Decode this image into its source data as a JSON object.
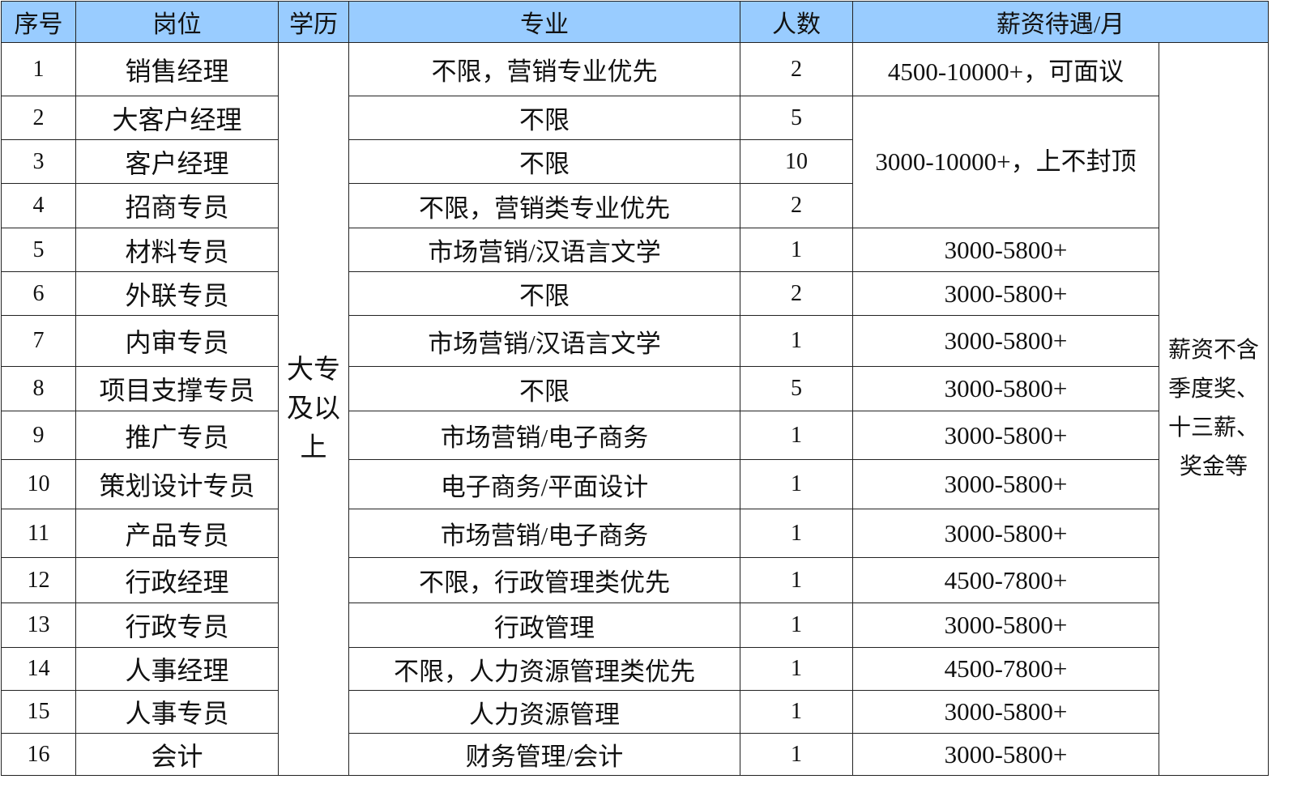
{
  "headers": {
    "index": "序号",
    "position": "岗位",
    "education": "学历",
    "major": "专业",
    "count": "人数",
    "salary": "薪资待遇/月"
  },
  "education_all": "大专及以上",
  "salary_note": "薪资不含季度奖、十三薪、奖金等",
  "merged_salary_2_4": "3000-10000+，上不封顶",
  "rows": [
    {
      "no": "1",
      "position": "销售经理",
      "major": "不限，营销专业优先",
      "count": "2",
      "salary": "4500-10000+，可面议"
    },
    {
      "no": "2",
      "position": "大客户经理",
      "major": "不限",
      "count": "5",
      "salary": ""
    },
    {
      "no": "3",
      "position": "客户经理",
      "major": "不限",
      "count": "10",
      "salary": ""
    },
    {
      "no": "4",
      "position": "招商专员",
      "major": "不限，营销类专业优先",
      "count": "2",
      "salary": ""
    },
    {
      "no": "5",
      "position": "材料专员",
      "major": "市场营销/汉语言文学",
      "count": "1",
      "salary": "3000-5800+"
    },
    {
      "no": "6",
      "position": "外联专员",
      "major": "不限",
      "count": "2",
      "salary": "3000-5800+"
    },
    {
      "no": "7",
      "position": "内审专员",
      "major": "市场营销/汉语言文学",
      "count": "1",
      "salary": "3000-5800+"
    },
    {
      "no": "8",
      "position": "项目支撑专员",
      "major": "不限",
      "count": "5",
      "salary": "3000-5800+"
    },
    {
      "no": "9",
      "position": "推广专员",
      "major": "市场营销/电子商务",
      "count": "1",
      "salary": "3000-5800+"
    },
    {
      "no": "10",
      "position": "策划设计专员",
      "major": "电子商务/平面设计",
      "count": "1",
      "salary": "3000-5800+"
    },
    {
      "no": "11",
      "position": "产品专员",
      "major": "市场营销/电子商务",
      "count": "1",
      "salary": "3000-5800+"
    },
    {
      "no": "12",
      "position": "行政经理",
      "major": "不限，行政管理类优先",
      "count": "1",
      "salary": "4500-7800+"
    },
    {
      "no": "13",
      "position": "行政专员",
      "major": "行政管理",
      "count": "1",
      "salary": "3000-5800+"
    },
    {
      "no": "14",
      "position": "人事经理",
      "major": "不限，人力资源管理类优先",
      "count": "1",
      "salary": "4500-7800+"
    },
    {
      "no": "15",
      "position": "人事专员",
      "major": "人力资源管理",
      "count": "1",
      "salary": "3000-5800+"
    },
    {
      "no": "16",
      "position": "会计",
      "major": "财务管理/会计",
      "count": "1",
      "salary": "3000-5800+"
    }
  ]
}
